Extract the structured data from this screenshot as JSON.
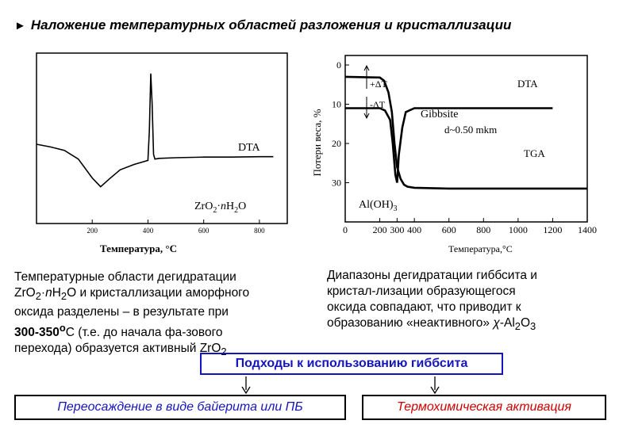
{
  "title": "Наложение температурных областей разложения и кристаллизации",
  "chart_data": [
    {
      "type": "line",
      "title": "",
      "xlabel": "Температура, °C",
      "ylabel": "",
      "x_ticks": [
        "200",
        "400",
        "600",
        "800"
      ],
      "xlim": [
        0,
        900
      ],
      "annotations": [
        "DTA",
        "ZrO2·nH2O"
      ],
      "series": [
        {
          "x": [
            0,
            50,
            100,
            150,
            200,
            230,
            260,
            300,
            350,
            400,
            405,
            410,
            415,
            420,
            425,
            440,
            500,
            600,
            700,
            800,
            850
          ],
          "y": [
            0,
            -0.4,
            -0.9,
            -2.2,
            -5.0,
            -6.3,
            -5.2,
            -3.8,
            -3.0,
            -2.4,
            2.0,
            10.5,
            6.0,
            -1.5,
            -2.2,
            -2.1,
            -2.0,
            -1.9,
            -1.9,
            -1.85,
            -1.85
          ]
        }
      ]
    },
    {
      "type": "line",
      "title": "",
      "xlabel": "Температура,°C",
      "ylabel": "Потери веса, %",
      "x_ticks": [
        "0",
        "200",
        "300",
        "400",
        "600",
        "800",
        "1000",
        "1200",
        "1400"
      ],
      "y_ticks": [
        "0",
        "10",
        "20",
        "30"
      ],
      "xlim": [
        0,
        1400
      ],
      "ylim": [
        0,
        40
      ],
      "annotations": [
        "+ΔT",
        "-ΔT",
        "DTA",
        "Gibbsite",
        "d~0.50 mkm",
        "TGA",
        "Al(OH)3"
      ],
      "series": [
        {
          "name": "DTA",
          "x": [
            0,
            200,
            230,
            260,
            275,
            290,
            300,
            310,
            330,
            350,
            400,
            600,
            1200
          ],
          "y": [
            11,
            11,
            11.6,
            14,
            20,
            28,
            30,
            23,
            16,
            12,
            11,
            11,
            11
          ]
        },
        {
          "name": "TGA",
          "x": [
            0,
            200,
            225,
            250,
            270,
            285,
            300,
            320,
            340,
            360,
            400,
            600,
            1400
          ],
          "y": [
            3,
            3.2,
            4,
            7,
            12,
            20,
            26,
            29,
            30.5,
            31,
            31.3,
            31.5,
            31.5
          ]
        }
      ]
    }
  ],
  "left_text": {
    "line1": "Температурные области дегидратации",
    "line2_a": "Zr",
    "line2_b": "O",
    "line2_c": "2",
    "line2_d": "·",
    "line2_e": "n",
    "line2_f": "H",
    "line2_g": "2",
    "line2_h": "O и кристаллизации аморфного",
    "line3": "оксида разделены – в результате при",
    "line4_a": "300-350",
    "line4_b": "o",
    "line4_c": "C (т.е. до начала фа-зового",
    "line5_a": "перехода) образуется активный ZrO",
    "line5_b": "2"
  },
  "right_text": {
    "line1": "Диапазоны дегидратации гиббсита и",
    "line2": "кристал-лизации образующегося",
    "line3": "оксида совпадают, что приводит к",
    "line4_a": "образованию «неактивного» ",
    "line4_b": "χ",
    "line4_c": "-Al",
    "line4_d": "2",
    "line4_e": "O",
    "line4_f": "3"
  },
  "approaches_label": "Подходы к использованию гиббсита",
  "option_left": "Переосаждение в виде байерита или ПБ",
  "option_right": "Термохимическая активация",
  "colors": {
    "blue": "#1515c0",
    "red": "#d00000"
  }
}
